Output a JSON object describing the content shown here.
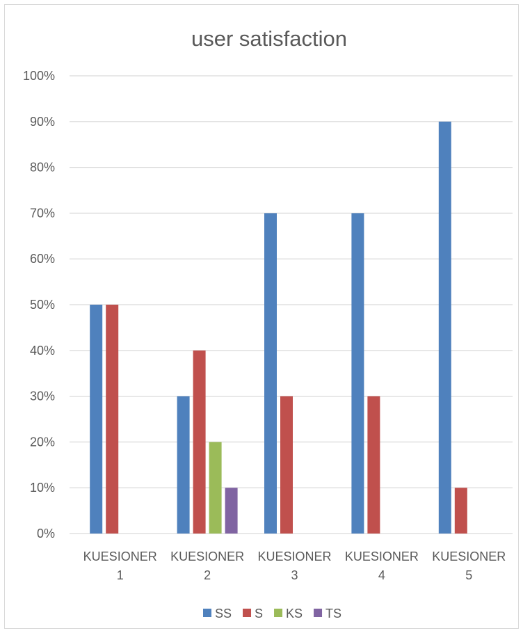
{
  "chart_data": {
    "type": "bar",
    "title": "user satisfaction",
    "xlabel": "",
    "ylabel": "",
    "categories": [
      [
        "KUESIONER",
        "1"
      ],
      [
        "KUESIONER",
        "2"
      ],
      [
        "KUESIONER",
        "3"
      ],
      [
        "KUESIONER",
        "4"
      ],
      [
        "KUESIONER",
        "5"
      ]
    ],
    "series": [
      {
        "name": "SS",
        "color": "#4f81bd",
        "values": [
          50,
          30,
          70,
          70,
          90
        ]
      },
      {
        "name": "S",
        "color": "#c0504d",
        "values": [
          50,
          40,
          30,
          30,
          10
        ]
      },
      {
        "name": "KS",
        "color": "#9bbb59",
        "values": [
          0,
          20,
          0,
          0,
          0
        ]
      },
      {
        "name": "TS",
        "color": "#8064a2",
        "values": [
          0,
          10,
          0,
          0,
          0
        ]
      }
    ],
    "ylim": [
      0,
      100
    ],
    "yticks": [
      "0%",
      "10%",
      "20%",
      "30%",
      "40%",
      "50%",
      "60%",
      "70%",
      "80%",
      "90%",
      "100%"
    ],
    "grid": true,
    "legend": "bottom",
    "gridline_color": "#d9d9d9"
  }
}
